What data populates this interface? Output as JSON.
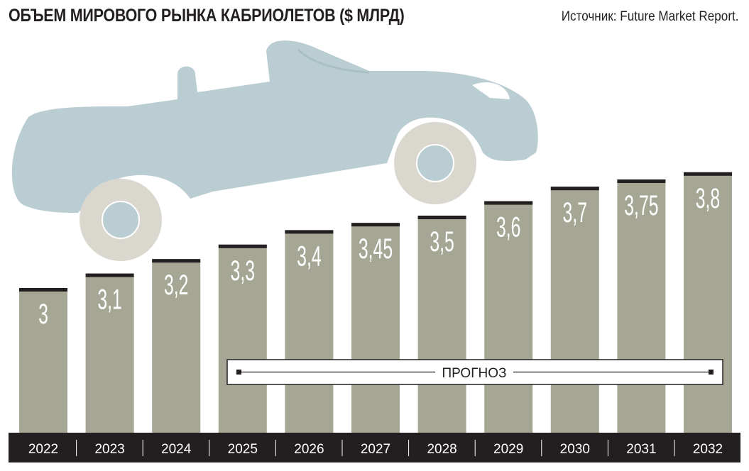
{
  "title": "ОБЪЕМ МИРОВОГО РЫНКА КАБРИОЛЕТОВ ($ МЛРД)",
  "source": "Источник: Future Market Report.",
  "colors": {
    "bar": "#a6a694",
    "bar_cap": "#231f20",
    "axis_band": "#231f20",
    "car_body": "#b9cdd2",
    "wheel": "#d9d7ce"
  },
  "chart_data": {
    "type": "bar",
    "title": "ОБЪЕМ МИРОВОГО РЫНКА КАБРИОЛЕТОВ ($ МЛРД)",
    "categories": [
      "2022",
      "2023",
      "2024",
      "2025",
      "2026",
      "2027",
      "2028",
      "2029",
      "2030",
      "2031",
      "2032"
    ],
    "values": [
      3,
      3.1,
      3.2,
      3.3,
      3.4,
      3.45,
      3.5,
      3.6,
      3.7,
      3.75,
      3.8
    ],
    "labels": [
      "3",
      "3,1",
      "3,2",
      "3,3",
      "3,4",
      "3,45",
      "3,5",
      "3,6",
      "3,7",
      "3,75",
      "3,8"
    ],
    "ylim": [
      2,
      4
    ],
    "grid": false,
    "annotation": {
      "text": "ПРОГНОЗ",
      "from": "2025",
      "to": "2032"
    }
  }
}
